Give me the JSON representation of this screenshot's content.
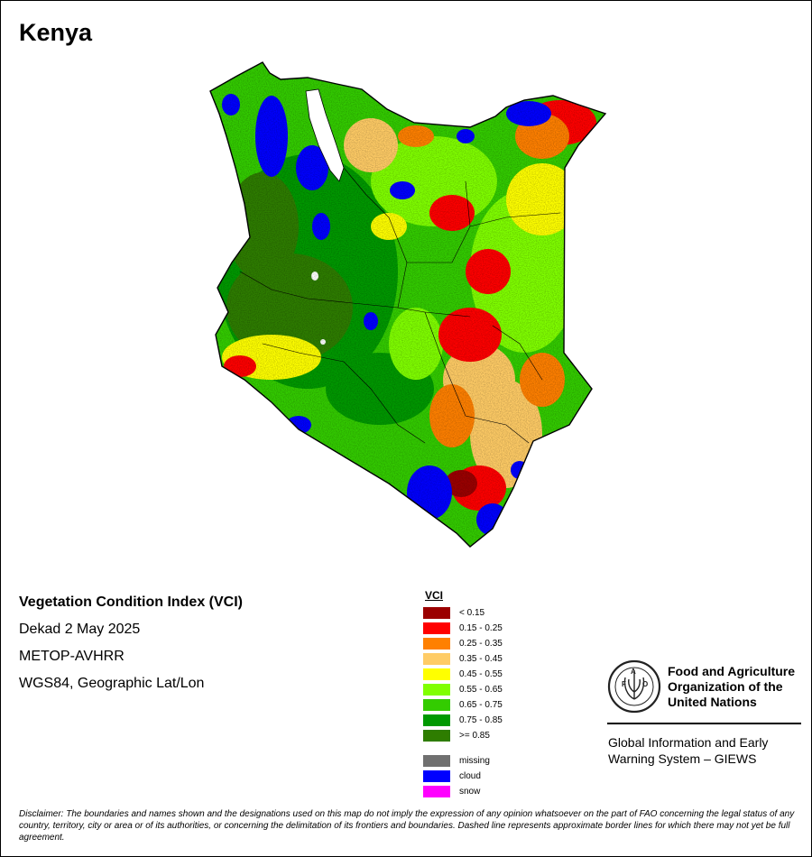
{
  "map": {
    "title": "Kenya",
    "info": {
      "index_name": "Vegetation Condition Index (VCI)",
      "dekad": "Dekad 2 May 2025",
      "sensor": "METOP-AVHRR",
      "projection": "WGS84, Geographic Lat/Lon"
    }
  },
  "legend": {
    "title": "VCI",
    "classes": [
      {
        "label": "< 0.15",
        "color": "#9b0000"
      },
      {
        "label": "0.15 - 0.25",
        "color": "#ff0000"
      },
      {
        "label": "0.25 - 0.35",
        "color": "#ff8000"
      },
      {
        "label": "0.35 - 0.45",
        "color": "#ffcc66"
      },
      {
        "label": "0.45 - 0.55",
        "color": "#ffff00"
      },
      {
        "label": "0.55 - 0.65",
        "color": "#80ff00"
      },
      {
        "label": "0.65 - 0.75",
        "color": "#33cc00"
      },
      {
        "label": "0.75 - 0.85",
        "color": "#009900"
      },
      {
        "label": ">= 0.85",
        "color": "#2e7d00"
      }
    ],
    "special": [
      {
        "label": "missing",
        "color": "#707070"
      },
      {
        "label": "cloud",
        "color": "#0000ff"
      },
      {
        "label": "snow",
        "color": "#ff00ff"
      }
    ]
  },
  "organization": {
    "logo_icon": "fao-emblem-icon",
    "name_line1": "Food and Agriculture",
    "name_line2": "Organization of the",
    "name_line3": "United Nations",
    "system_line1": "Global Information and Early",
    "system_line2": "Warning System – GIEWS"
  },
  "disclaimer": "Disclaimer: The boundaries and names shown and the designations used on this map do not imply the expression of any opinion whatsoever on the part of FAO concerning the legal status of any country, territory, city or area or of its authorities, or concerning the delimitation of its frontiers and boundaries. Dashed line represents approximate border lines for which there may not yet be full agreement."
}
